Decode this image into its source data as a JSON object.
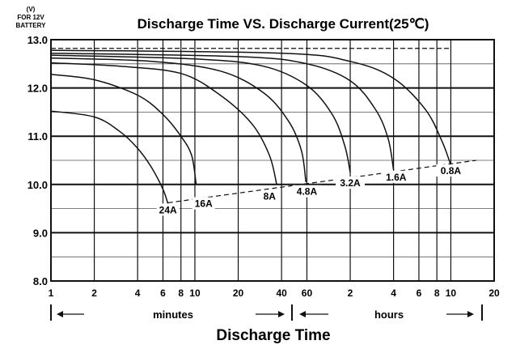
{
  "chart_data": {
    "type": "line",
    "title": "Discharge Time VS. Discharge Current(25℃)",
    "y_unit_label": [
      "(V)",
      "FOR 12V",
      "BATTERY"
    ],
    "xlabel": "Discharge Time",
    "ylim": [
      8.0,
      13.0
    ],
    "x_scale": "log",
    "x_range_minutes": [
      1,
      1200
    ],
    "grid": true,
    "y_ticks": [
      "8.0",
      "9.0",
      "10.0",
      "11.0",
      "12.0",
      "13.0"
    ],
    "x_ticks": [
      {
        "label": "1",
        "minutes": 1
      },
      {
        "label": "2",
        "minutes": 2
      },
      {
        "label": "4",
        "minutes": 4
      },
      {
        "label": "6",
        "minutes": 6
      },
      {
        "label": "8",
        "minutes": 8
      },
      {
        "label": "10",
        "minutes": 10
      },
      {
        "label": "20",
        "minutes": 20
      },
      {
        "label": "40",
        "minutes": 40
      },
      {
        "label": "60",
        "minutes": 60
      },
      {
        "label": "2",
        "minutes": 120
      },
      {
        "label": "4",
        "minutes": 240
      },
      {
        "label": "6",
        "minutes": 360
      },
      {
        "label": "8",
        "minutes": 480
      },
      {
        "label": "10",
        "minutes": 600
      },
      {
        "label": "20",
        "minutes": 1200
      }
    ],
    "time_units": {
      "minutes": "minutes",
      "hours": "hours"
    },
    "series": [
      {
        "name": "24A",
        "x": [
          1,
          2,
          3,
          4,
          5,
          6,
          6.5
        ],
        "y": [
          11.52,
          11.4,
          11.1,
          10.75,
          10.35,
          9.9,
          9.6
        ]
      },
      {
        "name": "16A",
        "x": [
          1,
          2,
          4,
          6,
          8,
          9.5,
          10.2
        ],
        "y": [
          12.28,
          12.17,
          11.85,
          11.45,
          11.0,
          10.6,
          10.0
        ]
      },
      {
        "name": "8A",
        "x": [
          1,
          3,
          8,
          15,
          25,
          33,
          37
        ],
        "y": [
          12.52,
          12.45,
          12.3,
          11.85,
          11.25,
          10.6,
          10.0
        ]
      },
      {
        "name": "4.8A",
        "x": [
          1,
          5,
          15,
          30,
          45,
          55,
          59
        ],
        "y": [
          12.62,
          12.55,
          12.35,
          11.9,
          11.3,
          10.7,
          10.05
        ]
      },
      {
        "name": "3.2A",
        "x": [
          1,
          10,
          30,
          60,
          90,
          110,
          120
        ],
        "y": [
          12.68,
          12.6,
          12.45,
          12.05,
          11.45,
          10.8,
          10.25
        ]
      },
      {
        "name": "1.6A",
        "x": [
          1,
          20,
          60,
          120,
          180,
          220,
          240
        ],
        "y": [
          12.72,
          12.65,
          12.5,
          12.15,
          11.55,
          10.95,
          10.3
        ]
      },
      {
        "name": "0.8A",
        "x": [
          1,
          40,
          120,
          240,
          400,
          520,
          600
        ],
        "y": [
          12.78,
          12.72,
          12.55,
          12.2,
          11.55,
          10.9,
          10.4
        ]
      }
    ],
    "cutoff_line": {
      "x": [
        6.5,
        900
      ],
      "y": [
        9.62,
        10.5
      ],
      "style": "dashed"
    },
    "start_line": {
      "x": [
        1,
        600
      ],
      "y": [
        12.82,
        12.82
      ],
      "style": "dashed"
    },
    "annotations": [
      {
        "text": "24A",
        "x": 6.5,
        "y": 9.42
      },
      {
        "text": "16A",
        "x": 11.5,
        "y": 9.55
      },
      {
        "text": "8A",
        "x": 33,
        "y": 9.7
      },
      {
        "text": "4.8A",
        "x": 60,
        "y": 9.8
      },
      {
        "text": "3.2A",
        "x": 120,
        "y": 9.98
      },
      {
        "text": "1.6A",
        "x": 250,
        "y": 10.1
      },
      {
        "text": "0.8A",
        "x": 600,
        "y": 10.23
      }
    ]
  }
}
